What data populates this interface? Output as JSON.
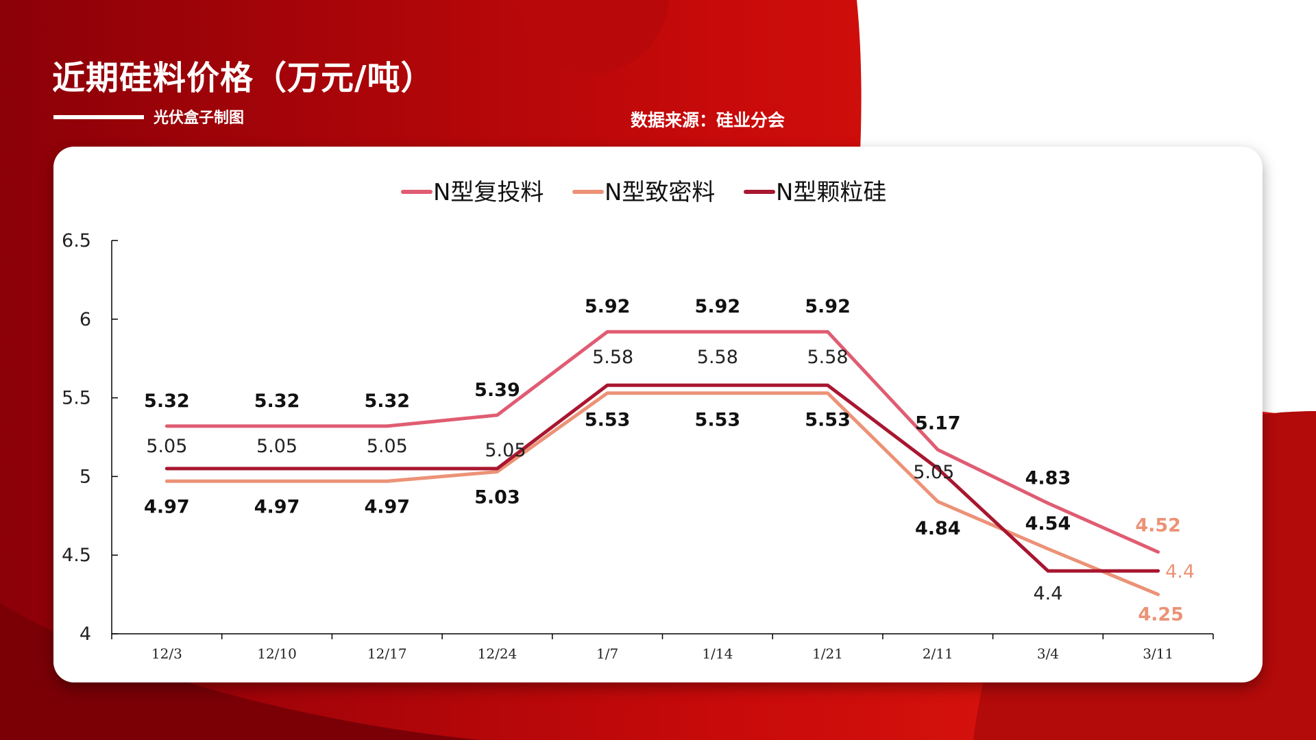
{
  "header": {
    "title": "近期硅料价格（万元/吨）",
    "credit": "光伏盒子制图",
    "source": "数据来源：硅业分会"
  },
  "colors": {
    "background_dark": "#8c0008",
    "background_bright": "#d01008",
    "card": "#ffffff",
    "series_1": "#e05c72",
    "series_2": "#ec9276",
    "series_3": "#a81630"
  },
  "chart_data": {
    "type": "line",
    "categories": [
      "12/3",
      "12/10",
      "12/17",
      "12/24",
      "1/7",
      "1/14",
      "1/21",
      "2/11",
      "3/4",
      "3/11"
    ],
    "series": [
      {
        "name": "N型复投料",
        "values": [
          5.32,
          5.32,
          5.32,
          5.39,
          5.92,
          5.92,
          5.92,
          5.17,
          4.83,
          4.52
        ]
      },
      {
        "name": "N型致密料",
        "values": [
          4.97,
          4.97,
          4.97,
          5.03,
          5.53,
          5.53,
          5.53,
          4.84,
          4.54,
          4.25
        ]
      },
      {
        "name": "N型颗粒硅",
        "values": [
          5.05,
          5.05,
          5.05,
          5.05,
          5.58,
          5.58,
          5.58,
          5.05,
          4.4,
          4.4
        ]
      }
    ],
    "ylim": [
      4,
      6.5
    ],
    "yticks": [
      "4",
      "4.5",
      "5",
      "5.5",
      "6",
      "6.5"
    ],
    "legend": "top-center",
    "grid": false,
    "data_labels": true
  }
}
